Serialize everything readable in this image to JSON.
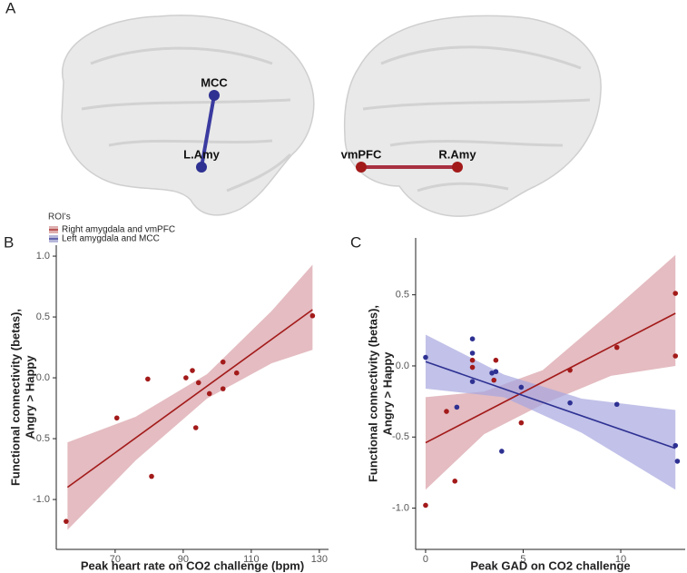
{
  "figure_label": "A",
  "brains": [
    {
      "top_label": "MCC",
      "bottom_label": "L.Amy"
    },
    {
      "left_label": "vmPFC",
      "right_label": "R.Amy"
    }
  ],
  "legend": {
    "title": "ROI's",
    "items": [
      {
        "name": "Right amygdala and vmPFC",
        "color": "#a31a1a"
      },
      {
        "name": "Left amygdala and MCC",
        "color": "#2e3192"
      }
    ]
  },
  "chart_data": [
    {
      "type": "scatter",
      "panel_label": "B",
      "xlabel": "Peak heart rate on CO2 challenge (bpm)",
      "ylabel": [
        "Functional connectivity (betas),",
        "Angry > Happy"
      ],
      "xlim": [
        52.7,
        132.7
      ],
      "ylim": [
        -1.41,
        1.09
      ],
      "xticks": [
        70,
        90,
        110,
        130
      ],
      "yticks": [
        {
          "value": 1,
          "label": "1.0"
        },
        0.5,
        {
          "value": 0,
          "label": "0.0"
        },
        -0.5,
        {
          "value": -1,
          "label": "-1.0"
        }
      ],
      "series": [
        {
          "color": "#a31a1a",
          "band_color": "#d9a0a6",
          "x": [
            128,
            55.6,
            70.5,
            79.6,
            80.7,
            90.8,
            92.7,
            94.5,
            93.7,
            97.7,
            101.7,
            101.7,
            105.7
          ],
          "values": [
            0.51,
            -1.18,
            -0.33,
            -0.01,
            -0.81,
            0.0,
            0.06,
            -0.04,
            -0.41,
            -0.13,
            0.13,
            -0.09,
            0.04
          ],
          "fit_x": [
            56,
            128
          ],
          "fit": [
            -0.9,
            0.56
          ],
          "band_x": [
            56,
            76,
            97,
            116,
            128
          ],
          "band_lower": [
            -1.25,
            -0.68,
            -0.17,
            0.12,
            0.23
          ],
          "band_upper": [
            -0.53,
            -0.32,
            0.03,
            0.55,
            0.93
          ]
        }
      ]
    },
    {
      "type": "scatter",
      "panel_label": "C",
      "xlabel": "Peak GAD on CO2 challenge",
      "ylabel": [
        "Functional connectivity (betas),",
        "Angry > Happy"
      ],
      "xlim": [
        -0.51,
        13.3
      ],
      "ylim": [
        -1.29,
        0.9
      ],
      "xticks": [
        0,
        5,
        10
      ],
      "yticks": [
        0.5,
        {
          "value": 0,
          "label": "0.0"
        },
        -0.5,
        {
          "value": -1,
          "label": "-1.0"
        }
      ],
      "series": [
        {
          "color": "#a31a1a",
          "band_color": "#d9a0a6",
          "x": [
            0,
            1.5,
            1.07,
            2.4,
            2.4,
            3.6,
            3.5,
            4.9,
            7.4,
            9.8,
            12.8,
            12.8
          ],
          "values": [
            -0.98,
            -0.81,
            -0.32,
            0.04,
            -0.01,
            0.04,
            -0.1,
            -0.4,
            -0.03,
            0.13,
            0.51,
            0.07
          ],
          "fit_x": [
            0,
            12.8
          ],
          "fit": [
            -0.54,
            0.37
          ],
          "band_x": [
            0,
            3,
            6,
            9.5,
            12.8
          ],
          "band_lower": [
            -0.87,
            -0.48,
            -0.27,
            -0.07,
            0.0
          ],
          "band_upper": [
            -0.22,
            -0.18,
            -0.03,
            0.38,
            0.78
          ]
        },
        {
          "color": "#2e3192",
          "band_color": "#a6a6e0",
          "x": [
            0,
            1.6,
            2.4,
            2.4,
            2.4,
            3.4,
            3.6,
            3.9,
            4.9,
            7.4,
            9.8,
            12.8,
            12.9
          ],
          "values": [
            0.06,
            -0.29,
            0.19,
            0.09,
            -0.11,
            -0.05,
            -0.04,
            -0.6,
            -0.15,
            -0.26,
            -0.27,
            -0.56,
            -0.67
          ],
          "fit_x": [
            0,
            12.8
          ],
          "fit": [
            0.03,
            -0.58
          ],
          "band_x": [
            0,
            4,
            8,
            12.8
          ],
          "band_lower": [
            -0.16,
            -0.22,
            -0.47,
            -0.87
          ],
          "band_upper": [
            0.22,
            -0.06,
            -0.23,
            -0.31
          ]
        }
      ]
    }
  ]
}
